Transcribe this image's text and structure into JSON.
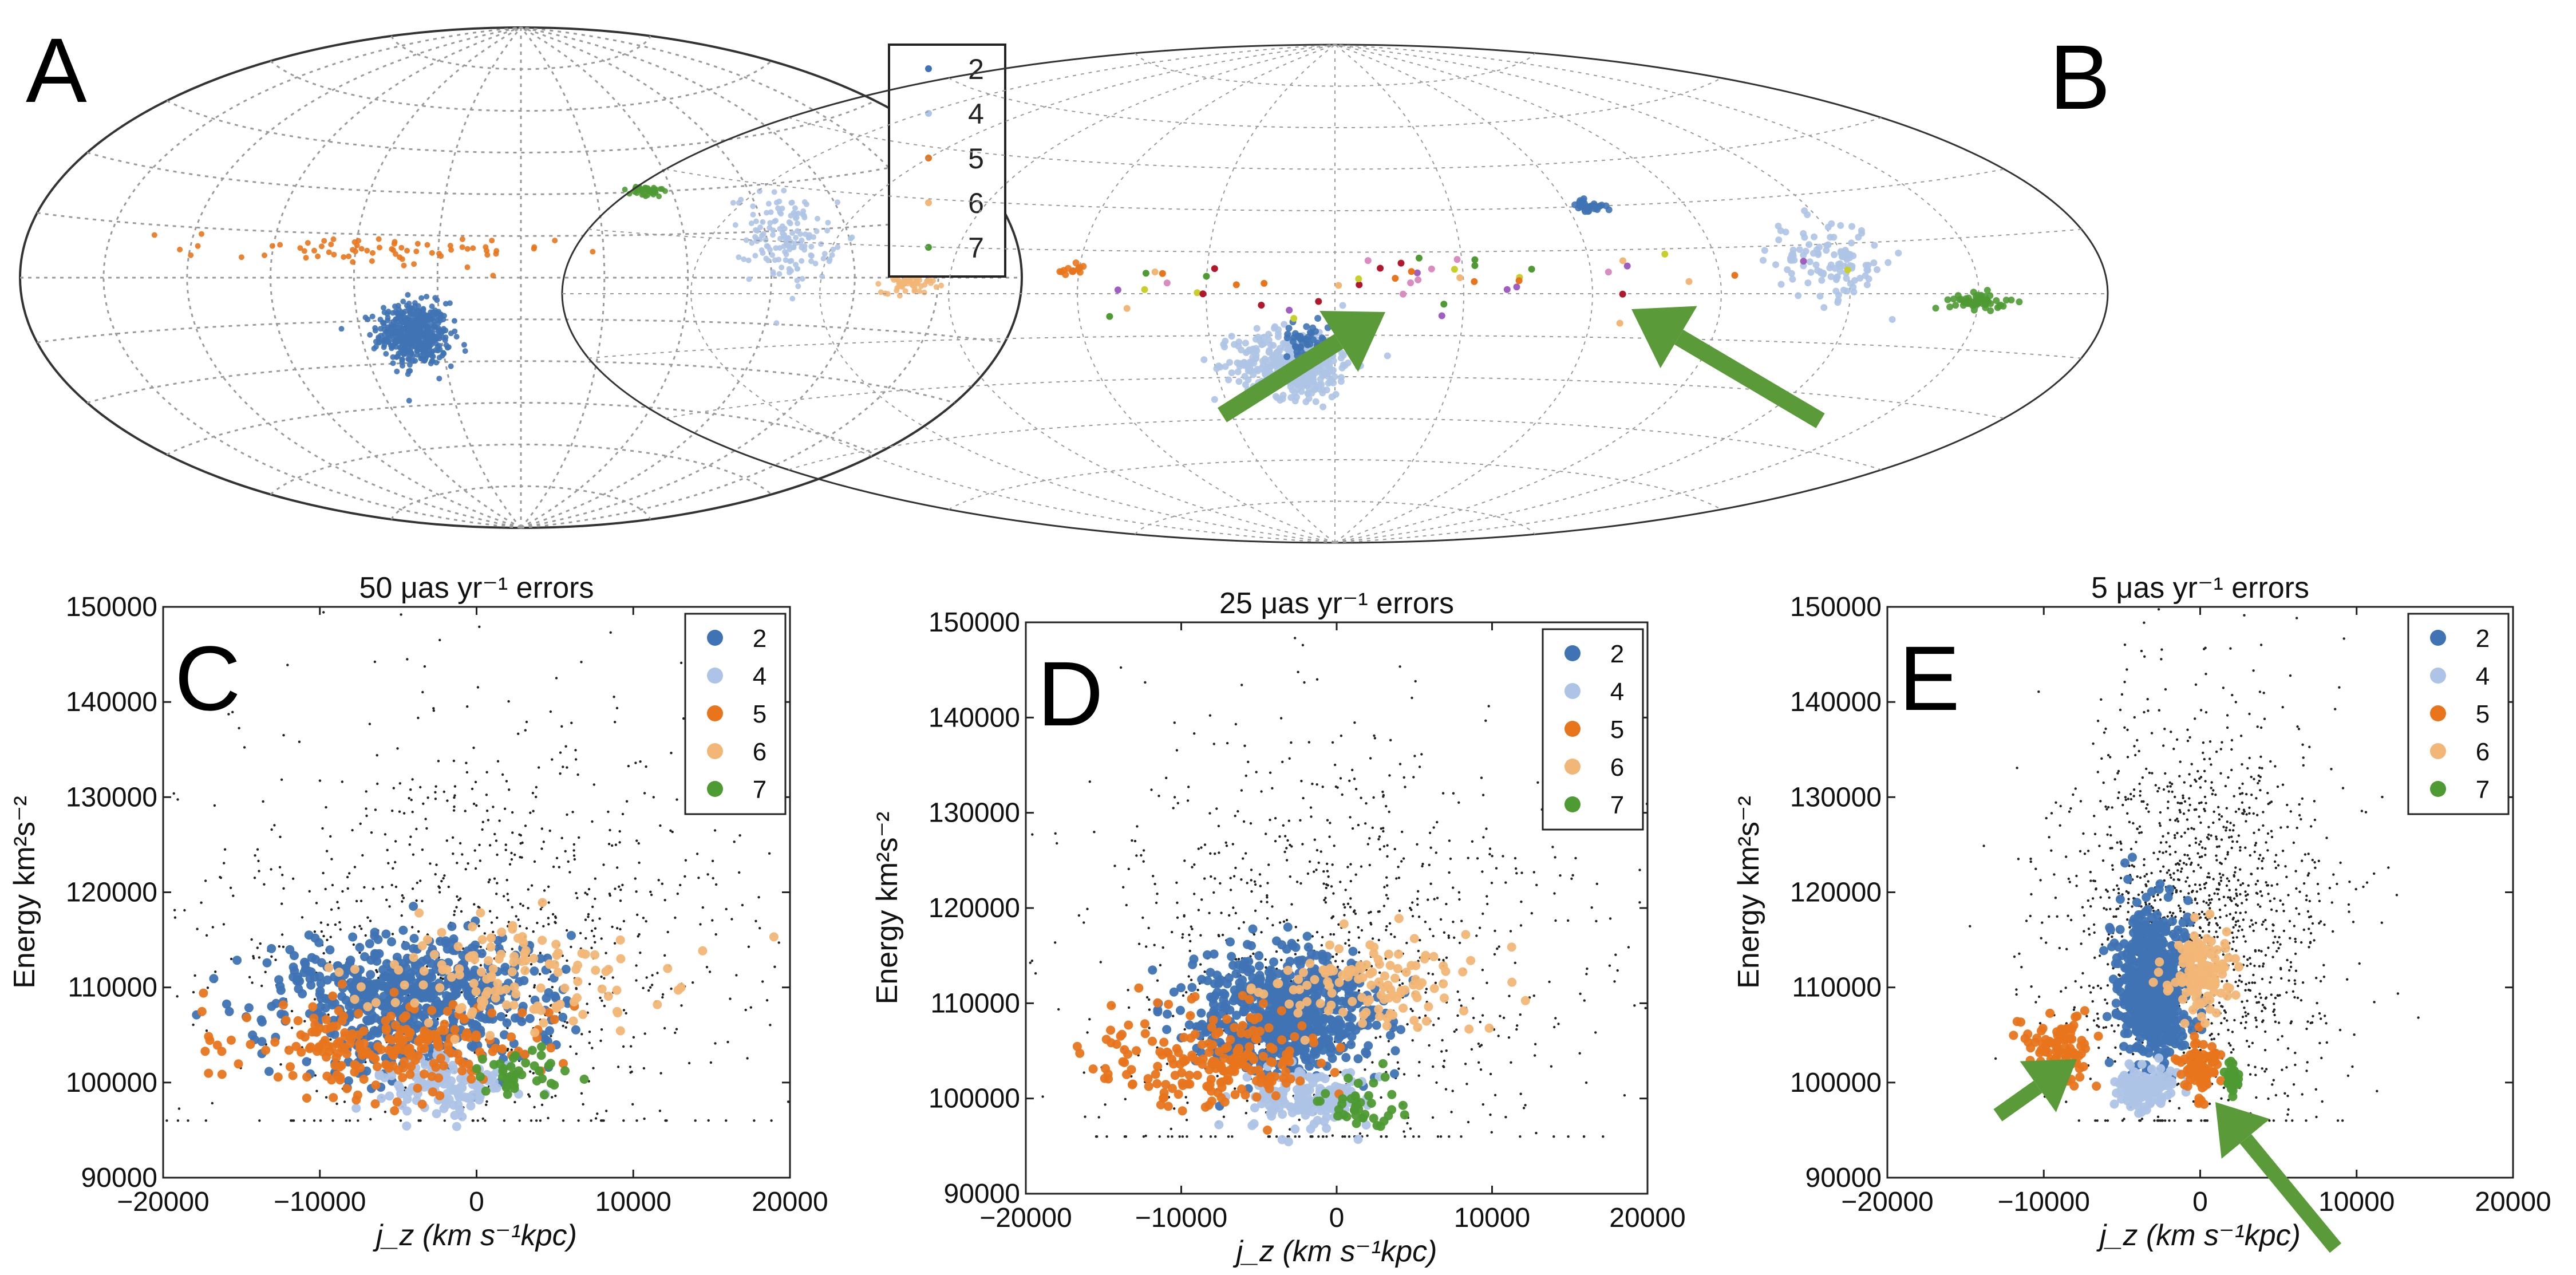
{
  "colors": {
    "2": "#3f73b4",
    "4": "#aec4e6",
    "5": "#e8751c",
    "6": "#f2b676",
    "7": "#4e9a33",
    "arrow": "#5a9a38",
    "bg_points": "#222222",
    "purple": "#a05ec0",
    "red": "#b2182b",
    "pink": "#d98cc0",
    "yellow": "#c9cf2a"
  },
  "legend_labels": [
    "2",
    "4",
    "5",
    "6",
    "7"
  ],
  "chart_data": [
    {
      "type": "scatter",
      "panel": "A",
      "projection": "aitoff",
      "title": "",
      "legend": [
        "2",
        "4",
        "5",
        "6",
        "7"
      ],
      "legend_position": "top-right",
      "clusters": [
        {
          "group": "2",
          "lon_deg": -40,
          "lat_deg": -20,
          "spread_lon": 12,
          "spread_lat": 10,
          "n": 500
        },
        {
          "group": "4",
          "lon_deg": 98,
          "lat_deg": 13,
          "spread_lon": 14,
          "spread_lat": 13,
          "n": 150
        },
        {
          "group": "5",
          "lon_deg": -55,
          "lat_deg": 9,
          "spread_lon": 60,
          "spread_lat": 5,
          "n": 70
        },
        {
          "group": "6",
          "lon_deg": 140,
          "lat_deg": -1,
          "spread_lon": 9,
          "spread_lat": 3,
          "n": 70
        },
        {
          "group": "7",
          "lon_deg": 50,
          "lat_deg": 30,
          "spread_lon": 6,
          "spread_lat": 2,
          "n": 40
        }
      ]
    },
    {
      "type": "scatter",
      "panel": "B",
      "projection": "aitoff",
      "title": "",
      "clusters": [
        {
          "group": "4",
          "lon_deg": -10,
          "lat_deg": -25,
          "spread_lon": 13,
          "spread_lat": 11,
          "n": 450
        },
        {
          "group": "2",
          "lon_deg": -7,
          "lat_deg": -16,
          "spread_lon": 5,
          "spread_lat": 5,
          "n": 40
        },
        {
          "group": "2",
          "lon_deg": 65,
          "lat_deg": 30,
          "spread_lon": 4,
          "spread_lat": 2,
          "n": 35
        },
        {
          "group": "4",
          "lon_deg": 117,
          "lat_deg": 10,
          "spread_lon": 12,
          "spread_lat": 11,
          "n": 120
        },
        {
          "group": "7",
          "lon_deg": 150,
          "lat_deg": -2,
          "spread_lon": 6,
          "spread_lat": 2,
          "n": 60
        },
        {
          "group": "5",
          "lon_deg": -62,
          "lat_deg": 8,
          "spread_lon": 3,
          "spread_lat": 2,
          "n": 15
        }
      ],
      "arrows": 2
    },
    {
      "type": "scatter",
      "panel": "C",
      "title": "50 μas yr⁻¹ errors",
      "xlabel": "j_z (km s⁻¹kpc)",
      "ylabel": "Energy km²s⁻²",
      "xlim": [
        -20000,
        20000
      ],
      "ylim": [
        90000,
        150000
      ],
      "xticks": [
        "−20000",
        "−10000",
        "0",
        "10000",
        "20000"
      ],
      "yticks": [
        "90000",
        "100000",
        "110000",
        "120000",
        "130000",
        "140000",
        "150000"
      ],
      "legend": [
        "2",
        "4",
        "5",
        "6",
        "7"
      ],
      "legend_position": "top-right",
      "clusters": [
        {
          "group": "2",
          "x": -4000,
          "y": 108500,
          "sx": 4200,
          "sy": 3500,
          "n": 650
        },
        {
          "group": "4",
          "x": -2000,
          "y": 100000,
          "sx": 2200,
          "sy": 1500,
          "n": 120
        },
        {
          "group": "5",
          "x": -6000,
          "y": 104000,
          "sx": 5000,
          "sy": 2500,
          "n": 230
        },
        {
          "group": "6",
          "x": 2000,
          "y": 111000,
          "sx": 5000,
          "sy": 3000,
          "n": 130
        },
        {
          "group": "7",
          "x": 2500,
          "y": 101000,
          "sx": 1500,
          "sy": 1200,
          "n": 40
        }
      ],
      "background": {
        "x": 0,
        "y": 115000,
        "sx": 9000,
        "sy": 12000,
        "n": 900
      }
    },
    {
      "type": "scatter",
      "panel": "D",
      "title": "25 μas yr⁻¹ errors",
      "xlabel": "j_z (km s⁻¹kpc)",
      "ylabel": "Energy km²s⁻²",
      "xlim": [
        -20000,
        20000
      ],
      "ylim": [
        90000,
        150000
      ],
      "xticks": [
        "−20000",
        "−10000",
        "0",
        "10000",
        "20000"
      ],
      "yticks": [
        "90000",
        "100000",
        "110000",
        "120000",
        "130000",
        "140000",
        "150000"
      ],
      "legend": [
        "2",
        "4",
        "5",
        "6",
        "7"
      ],
      "legend_position": "top-right",
      "clusters": [
        {
          "group": "2",
          "x": -3500,
          "y": 109000,
          "sx": 3000,
          "sy": 3200,
          "n": 700
        },
        {
          "group": "4",
          "x": -2000,
          "y": 100000,
          "sx": 2000,
          "sy": 1500,
          "n": 150
        },
        {
          "group": "5",
          "x": -8000,
          "y": 104000,
          "sx": 3500,
          "sy": 2500,
          "n": 200
        },
        {
          "group": "6",
          "x": 2500,
          "y": 112000,
          "sx": 3500,
          "sy": 2500,
          "n": 120
        },
        {
          "group": "7",
          "x": 1500,
          "y": 99500,
          "sx": 1500,
          "sy": 1200,
          "n": 40
        }
      ],
      "background": {
        "x": 0,
        "y": 115000,
        "sx": 8000,
        "sy": 12000,
        "n": 900
      }
    },
    {
      "type": "scatter",
      "panel": "E",
      "title": "5 μas yr⁻¹ errors",
      "xlabel": "j_z (km s⁻¹kpc)",
      "ylabel": "Energy km²s⁻²",
      "xlim": [
        -20000,
        20000
      ],
      "ylim": [
        90000,
        150000
      ],
      "xticks": [
        "−20000",
        "−10000",
        "0",
        "10000",
        "20000"
      ],
      "yticks": [
        "90000",
        "100000",
        "110000",
        "120000",
        "130000",
        "140000",
        "150000"
      ],
      "legend": [
        "2",
        "4",
        "5",
        "6",
        "7"
      ],
      "legend_position": "top-right",
      "clusters": [
        {
          "group": "2",
          "x": -3000,
          "y": 110000,
          "sx": 1100,
          "sy": 4000,
          "n": 650
        },
        {
          "group": "4",
          "x": -3500,
          "y": 99500,
          "sx": 900,
          "sy": 1200,
          "n": 120
        },
        {
          "group": "5",
          "x": -9000,
          "y": 103500,
          "sx": 1000,
          "sy": 1700,
          "n": 90
        },
        {
          "group": "5",
          "x": 0,
          "y": 101500,
          "sx": 600,
          "sy": 1700,
          "n": 90
        },
        {
          "group": "6",
          "x": 0,
          "y": 111500,
          "sx": 1000,
          "sy": 2200,
          "n": 130
        },
        {
          "group": "7",
          "x": 2000,
          "y": 100500,
          "sx": 300,
          "sy": 800,
          "n": 25
        }
      ],
      "background": {
        "x": 0,
        "y": 118000,
        "sx": 4500,
        "sy": 11000,
        "n": 1400
      },
      "arrows": 2
    }
  ],
  "panel_labels": {
    "A": "A",
    "B": "B",
    "C": "C",
    "D": "D",
    "E": "E"
  }
}
